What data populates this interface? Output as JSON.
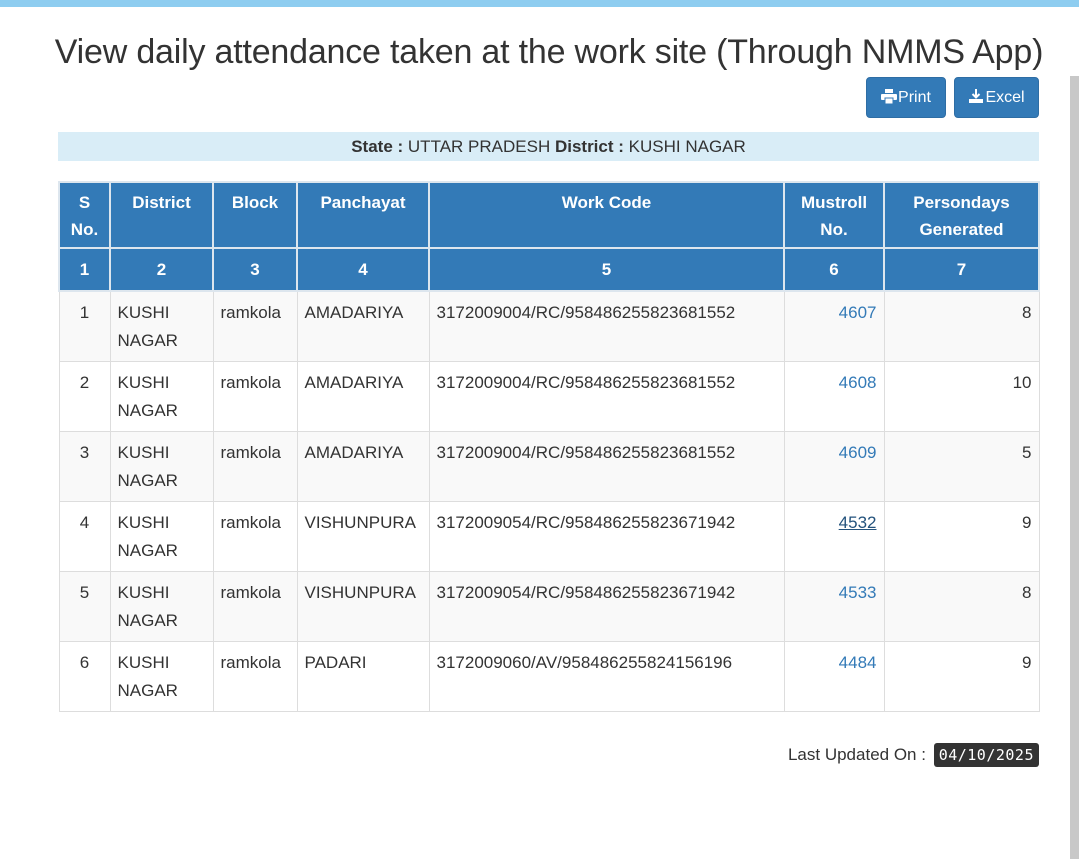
{
  "page": {
    "title": "View daily attendance taken at the work site (Through NMMS App)"
  },
  "toolbar": {
    "print_label": "Print",
    "excel_label": "Excel"
  },
  "location": {
    "state_label": "State :",
    "state_value": "UTTAR PRADESH",
    "district_label": "District :",
    "district_value": "KUSHI NAGAR"
  },
  "table": {
    "headers": [
      "S No.",
      "District",
      "Block",
      "Panchayat",
      "Work Code",
      "Mustroll No.",
      "Persondays Generated"
    ],
    "header_numbers": [
      "1",
      "2",
      "3",
      "4",
      "5",
      "6",
      "7"
    ],
    "rows": [
      {
        "sno": "1",
        "district": "KUSHI NAGAR",
        "block": "ramkola",
        "panchayat": "AMADARIYA",
        "work_code": "3172009004/RC/958486255823681552",
        "mustroll": "4607",
        "persondays": "8"
      },
      {
        "sno": "2",
        "district": "KUSHI NAGAR",
        "block": "ramkola",
        "panchayat": "AMADARIYA",
        "work_code": "3172009004/RC/958486255823681552",
        "mustroll": "4608",
        "persondays": "10"
      },
      {
        "sno": "3",
        "district": "KUSHI NAGAR",
        "block": "ramkola",
        "panchayat": "AMADARIYA",
        "work_code": "3172009004/RC/958486255823681552",
        "mustroll": "4609",
        "persondays": "5"
      },
      {
        "sno": "4",
        "district": "KUSHI NAGAR",
        "block": "ramkola",
        "panchayat": "VISHUNPURA",
        "work_code": "3172009054/RC/958486255823671942",
        "mustroll": "4532",
        "persondays": "9"
      },
      {
        "sno": "5",
        "district": "KUSHI NAGAR",
        "block": "ramkola",
        "panchayat": "VISHUNPURA",
        "work_code": "3172009054/RC/958486255823671942",
        "mustroll": "4533",
        "persondays": "8"
      },
      {
        "sno": "6",
        "district": "KUSHI NAGAR",
        "block": "ramkola",
        "panchayat": "PADARI",
        "work_code": "3172009060/AV/958486255824156196",
        "mustroll": "4484",
        "persondays": "9"
      }
    ]
  },
  "footer": {
    "last_updated_label": "Last Updated On :",
    "last_updated_value": "04/10/2025"
  },
  "colors": {
    "header_bg": "#337ab7",
    "info_bar_bg": "#d9edf7",
    "link": "#337ab7",
    "top_bar": "#8ecdf0"
  }
}
